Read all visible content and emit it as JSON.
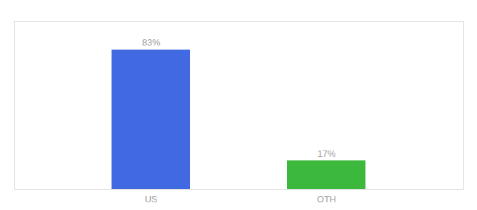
{
  "chart_data": {
    "type": "bar",
    "categories": [
      "US",
      "OTH"
    ],
    "values": [
      83,
      17
    ],
    "value_labels": [
      "83%",
      "17%"
    ],
    "colors": [
      "#4169e1",
      "#3cb83c"
    ],
    "ylim": [
      0,
      100
    ],
    "data_labels": true,
    "tick_labels": "x"
  }
}
